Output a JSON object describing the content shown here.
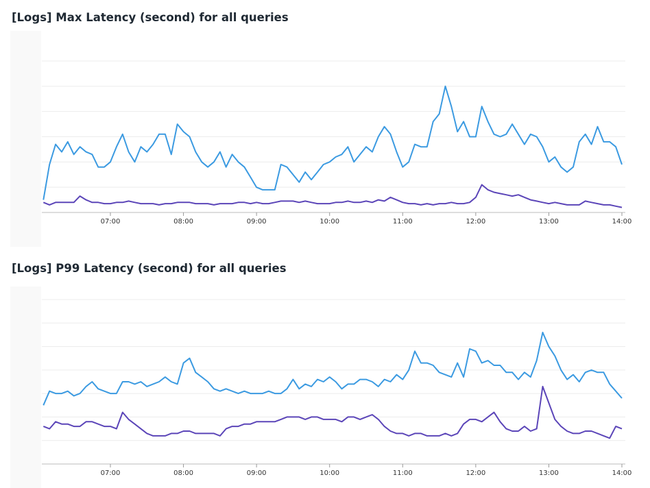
{
  "chart_data": [
    {
      "type": "line",
      "title": "[Logs] Max Latency (second) for all queries",
      "ylim": [
        0,
        6
      ],
      "grid": true,
      "legend": "none",
      "x_ticks": [
        "07:00",
        "08:00",
        "09:00",
        "10:00",
        "11:00",
        "12:00",
        "13:00",
        "14:00"
      ],
      "x": [
        "06:05",
        "06:10",
        "06:15",
        "06:20",
        "06:25",
        "06:30",
        "06:35",
        "06:40",
        "06:45",
        "06:50",
        "06:55",
        "07:00",
        "07:05",
        "07:10",
        "07:15",
        "07:20",
        "07:25",
        "07:30",
        "07:35",
        "07:40",
        "07:45",
        "07:50",
        "07:55",
        "08:00",
        "08:05",
        "08:10",
        "08:15",
        "08:20",
        "08:25",
        "08:30",
        "08:35",
        "08:40",
        "08:45",
        "08:50",
        "08:55",
        "09:00",
        "09:05",
        "09:10",
        "09:15",
        "09:20",
        "09:25",
        "09:30",
        "09:35",
        "09:40",
        "09:45",
        "09:50",
        "09:55",
        "10:00",
        "10:05",
        "10:10",
        "10:15",
        "10:20",
        "10:25",
        "10:30",
        "10:35",
        "10:40",
        "10:45",
        "10:50",
        "10:55",
        "11:00",
        "11:05",
        "11:10",
        "11:15",
        "11:20",
        "11:25",
        "11:30",
        "11:35",
        "11:40",
        "11:45",
        "11:50",
        "11:55",
        "12:00",
        "12:05",
        "12:10",
        "12:15",
        "12:20",
        "12:25",
        "12:30",
        "12:35",
        "12:40",
        "12:45",
        "12:50",
        "12:55",
        "13:00",
        "13:05",
        "13:10",
        "13:15",
        "13:20",
        "13:25",
        "13:30",
        "13:35",
        "13:40",
        "13:45",
        "13:50",
        "13:55",
        "14:00"
      ],
      "series": [
        {
          "color": "#3b9ae1",
          "values": [
            0.5,
            1.9,
            2.7,
            2.4,
            2.8,
            2.3,
            2.6,
            2.4,
            2.3,
            1.8,
            1.8,
            2.0,
            2.6,
            3.1,
            2.4,
            2.0,
            2.6,
            2.4,
            2.7,
            3.1,
            3.1,
            2.3,
            3.5,
            3.2,
            3.0,
            2.4,
            2.0,
            1.8,
            2.0,
            2.4,
            1.8,
            2.3,
            2.0,
            1.8,
            1.4,
            1.0,
            0.9,
            0.9,
            0.9,
            1.9,
            1.8,
            1.5,
            1.2,
            1.6,
            1.3,
            1.6,
            1.9,
            2.0,
            2.2,
            2.3,
            2.6,
            2.0,
            2.3,
            2.6,
            2.4,
            3.0,
            3.4,
            3.1,
            2.4,
            1.8,
            2.0,
            2.7,
            2.6,
            2.6,
            3.6,
            3.9,
            5.0,
            4.2,
            3.2,
            3.6,
            3.0,
            3.0,
            4.2,
            3.6,
            3.1,
            3.0,
            3.1,
            3.5,
            3.1,
            2.7,
            3.1,
            3.0,
            2.6,
            2.0,
            2.2,
            1.8,
            1.6,
            1.8,
            2.8,
            3.1,
            2.7,
            3.4,
            2.8,
            2.8,
            2.6,
            1.9
          ]
        },
        {
          "color": "#5b45b8",
          "values": [
            0.4,
            0.3,
            0.4,
            0.4,
            0.4,
            0.4,
            0.65,
            0.5,
            0.4,
            0.4,
            0.35,
            0.35,
            0.4,
            0.4,
            0.45,
            0.4,
            0.35,
            0.35,
            0.35,
            0.3,
            0.35,
            0.35,
            0.4,
            0.4,
            0.4,
            0.35,
            0.35,
            0.35,
            0.3,
            0.35,
            0.35,
            0.35,
            0.4,
            0.4,
            0.35,
            0.4,
            0.35,
            0.35,
            0.4,
            0.45,
            0.45,
            0.45,
            0.4,
            0.45,
            0.4,
            0.35,
            0.35,
            0.35,
            0.4,
            0.4,
            0.45,
            0.4,
            0.4,
            0.45,
            0.4,
            0.5,
            0.45,
            0.6,
            0.5,
            0.4,
            0.35,
            0.35,
            0.3,
            0.35,
            0.3,
            0.35,
            0.35,
            0.4,
            0.35,
            0.35,
            0.4,
            0.6,
            1.1,
            0.9,
            0.8,
            0.75,
            0.7,
            0.65,
            0.7,
            0.6,
            0.5,
            0.45,
            0.4,
            0.35,
            0.4,
            0.35,
            0.3,
            0.3,
            0.3,
            0.45,
            0.4,
            0.35,
            0.3,
            0.3,
            0.25,
            0.2
          ]
        }
      ]
    },
    {
      "type": "line",
      "title": "[Logs] P99 Latency (second) for all queries",
      "ylim": [
        0,
        7
      ],
      "grid": true,
      "legend": "none",
      "x_ticks": [
        "07:00",
        "08:00",
        "09:00",
        "10:00",
        "11:00",
        "12:00",
        "13:00",
        "14:00"
      ],
      "x": [
        "06:05",
        "06:10",
        "06:15",
        "06:20",
        "06:25",
        "06:30",
        "06:35",
        "06:40",
        "06:45",
        "06:50",
        "06:55",
        "07:00",
        "07:05",
        "07:10",
        "07:15",
        "07:20",
        "07:25",
        "07:30",
        "07:35",
        "07:40",
        "07:45",
        "07:50",
        "07:55",
        "08:00",
        "08:05",
        "08:10",
        "08:15",
        "08:20",
        "08:25",
        "08:30",
        "08:35",
        "08:40",
        "08:45",
        "08:50",
        "08:55",
        "09:00",
        "09:05",
        "09:10",
        "09:15",
        "09:20",
        "09:25",
        "09:30",
        "09:35",
        "09:40",
        "09:45",
        "09:50",
        "09:55",
        "10:00",
        "10:05",
        "10:10",
        "10:15",
        "10:20",
        "10:25",
        "10:30",
        "10:35",
        "10:40",
        "10:45",
        "10:50",
        "10:55",
        "11:00",
        "11:05",
        "11:10",
        "11:15",
        "11:20",
        "11:25",
        "11:30",
        "11:35",
        "11:40",
        "11:45",
        "11:50",
        "11:55",
        "12:00",
        "12:05",
        "12:10",
        "12:15",
        "12:20",
        "12:25",
        "12:30",
        "12:35",
        "12:40",
        "12:45",
        "12:50",
        "12:55",
        "13:00",
        "13:05",
        "13:10",
        "13:15",
        "13:20",
        "13:25",
        "13:30",
        "13:35",
        "13:40",
        "13:45",
        "13:50",
        "13:55",
        "14:00"
      ],
      "series": [
        {
          "color": "#3b9ae1",
          "values": [
            2.5,
            3.1,
            3.0,
            3.0,
            3.1,
            2.9,
            3.0,
            3.3,
            3.5,
            3.2,
            3.1,
            3.0,
            3.0,
            3.5,
            3.5,
            3.4,
            3.5,
            3.3,
            3.4,
            3.5,
            3.7,
            3.5,
            3.4,
            4.3,
            4.5,
            3.9,
            3.7,
            3.5,
            3.2,
            3.1,
            3.2,
            3.1,
            3.0,
            3.1,
            3.0,
            3.0,
            3.0,
            3.1,
            3.0,
            3.0,
            3.2,
            3.6,
            3.2,
            3.4,
            3.3,
            3.6,
            3.5,
            3.7,
            3.5,
            3.2,
            3.4,
            3.4,
            3.6,
            3.6,
            3.5,
            3.3,
            3.6,
            3.5,
            3.8,
            3.6,
            4.0,
            4.8,
            4.3,
            4.3,
            4.2,
            3.9,
            3.8,
            3.7,
            4.3,
            3.7,
            4.9,
            4.8,
            4.3,
            4.4,
            4.2,
            4.2,
            3.9,
            3.9,
            3.6,
            3.9,
            3.7,
            4.4,
            5.6,
            5.0,
            4.6,
            4.0,
            3.6,
            3.8,
            3.5,
            3.9,
            4.0,
            3.9,
            3.9,
            3.4,
            3.1,
            2.8
          ]
        },
        {
          "color": "#5b45b8",
          "values": [
            1.6,
            1.5,
            1.8,
            1.7,
            1.7,
            1.6,
            1.6,
            1.8,
            1.8,
            1.7,
            1.6,
            1.6,
            1.5,
            2.2,
            1.9,
            1.7,
            1.5,
            1.3,
            1.2,
            1.2,
            1.2,
            1.3,
            1.3,
            1.4,
            1.4,
            1.3,
            1.3,
            1.3,
            1.3,
            1.2,
            1.5,
            1.6,
            1.6,
            1.7,
            1.7,
            1.8,
            1.8,
            1.8,
            1.8,
            1.9,
            2.0,
            2.0,
            2.0,
            1.9,
            2.0,
            2.0,
            1.9,
            1.9,
            1.9,
            1.8,
            2.0,
            2.0,
            1.9,
            2.0,
            2.1,
            1.9,
            1.6,
            1.4,
            1.3,
            1.3,
            1.2,
            1.3,
            1.3,
            1.2,
            1.2,
            1.2,
            1.3,
            1.2,
            1.3,
            1.7,
            1.9,
            1.9,
            1.8,
            2.0,
            2.2,
            1.8,
            1.5,
            1.4,
            1.4,
            1.6,
            1.4,
            1.5,
            3.3,
            2.6,
            1.9,
            1.6,
            1.4,
            1.3,
            1.3,
            1.4,
            1.4,
            1.3,
            1.2,
            1.1,
            1.6,
            1.5
          ]
        }
      ]
    }
  ]
}
